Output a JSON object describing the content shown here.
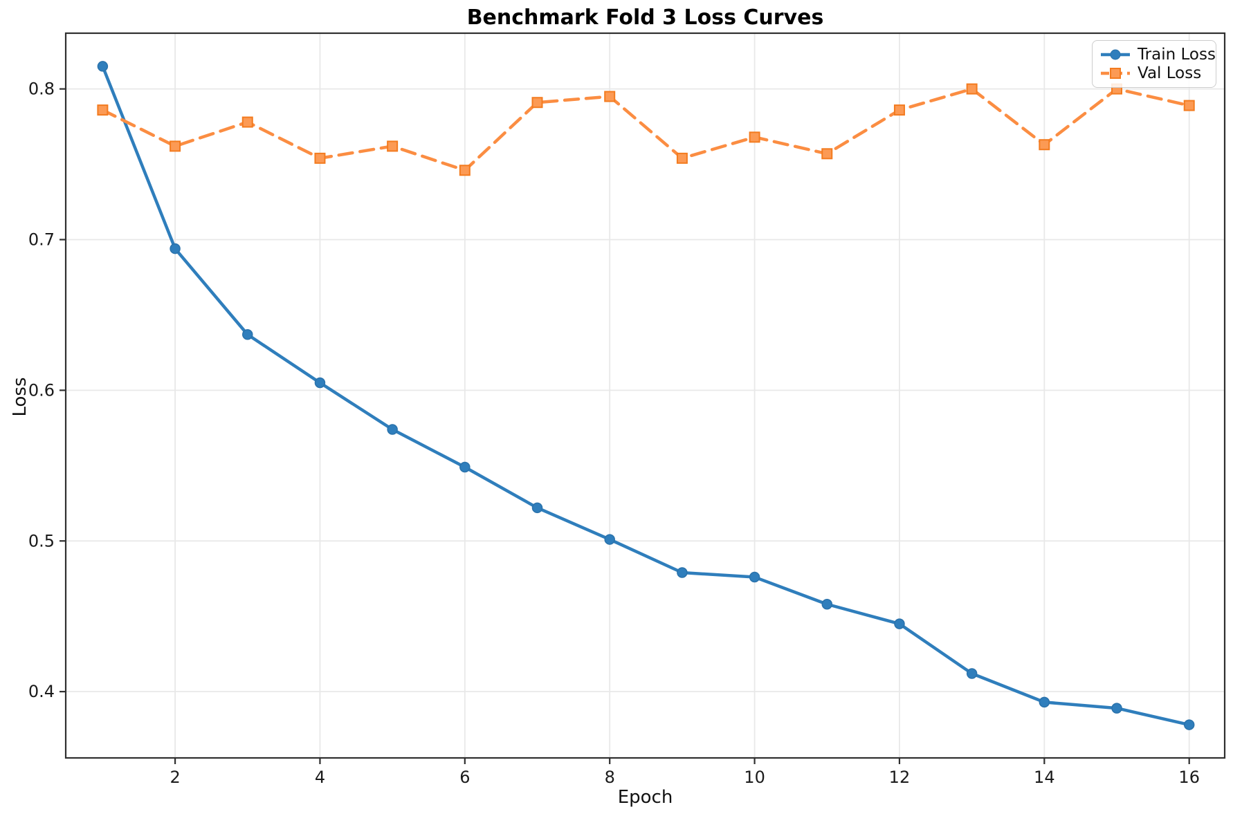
{
  "chart_data": {
    "type": "line",
    "title": "Benchmark Fold 3 Loss Curves",
    "xlabel": "Epoch",
    "ylabel": "Loss",
    "x": [
      1,
      2,
      3,
      4,
      5,
      6,
      7,
      8,
      9,
      10,
      11,
      12,
      13,
      14,
      15,
      16
    ],
    "series": [
      {
        "name": "Train Loss",
        "values": [
          0.815,
          0.694,
          0.637,
          0.605,
          0.574,
          0.549,
          0.522,
          0.501,
          0.479,
          0.476,
          0.458,
          0.445,
          0.412,
          0.393,
          0.389,
          0.378
        ],
        "color": "#2f7ebc",
        "marker_fill": "#2f7ebc",
        "marker_edge": "#2a72ab",
        "line_style": "solid",
        "marker": "circle"
      },
      {
        "name": "Val Loss",
        "values": [
          0.786,
          0.762,
          0.778,
          0.754,
          0.762,
          0.746,
          0.791,
          0.795,
          0.754,
          0.768,
          0.757,
          0.786,
          0.8,
          0.763,
          0.8,
          0.789
        ],
        "color": "#fb8d42",
        "marker_fill": "#fc9a54",
        "marker_edge": "#f37b1f",
        "line_style": "dashed",
        "marker": "square"
      }
    ],
    "xlim": [
      0.49,
      16.49
    ],
    "ylim": [
      0.356,
      0.837
    ],
    "xticks": [
      2,
      4,
      6,
      8,
      10,
      12,
      14,
      16
    ],
    "yticks": [
      0.4,
      0.5,
      0.6,
      0.7,
      0.8
    ],
    "grid": true,
    "legend_position": "upper right"
  },
  "style_colors": {
    "grid": "#e8e8e8",
    "spine": "#2f2f2f",
    "tick_text": "#1a1a1a",
    "background": "#ffffff"
  }
}
